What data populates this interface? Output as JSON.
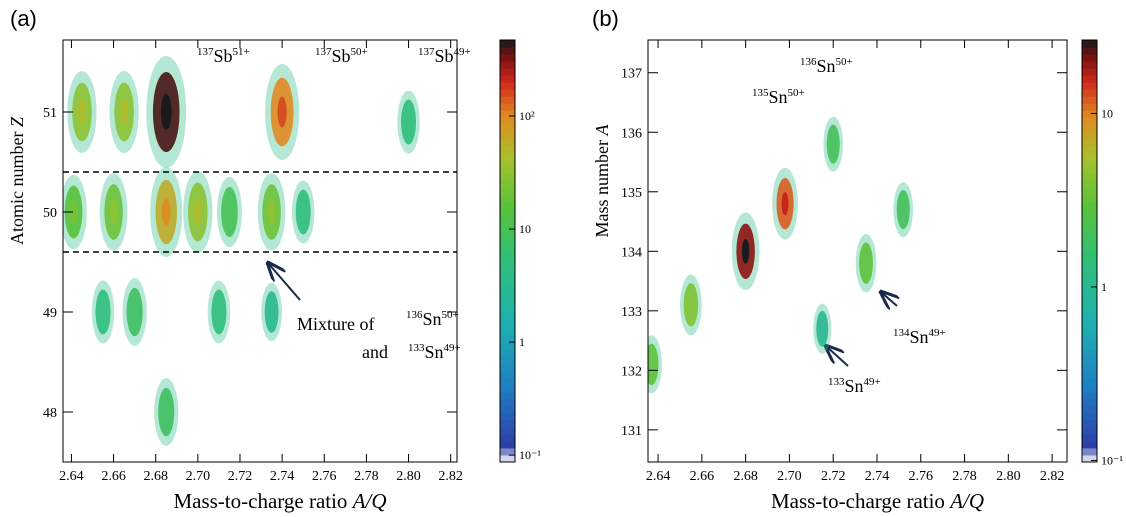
{
  "chart_data": [
    {
      "type": "heatmap",
      "panel": "(a)",
      "xlabel": {
        "text": "Mass-to-charge ratio",
        "symbol": "A/Q"
      },
      "ylabel": {
        "text": "Atomic number",
        "symbol": "Z"
      },
      "xlim": [
        2.636,
        2.823
      ],
      "ylim": [
        47.5,
        51.72
      ],
      "xticks": [
        2.64,
        2.66,
        2.68,
        {
          "value": 2.7,
          "label": "2.70"
        },
        2.72,
        2.74,
        2.76,
        2.78,
        {
          "value": 2.8,
          "label": "2.80"
        },
        2.82
      ],
      "yticks": [
        48,
        49,
        50,
        51
      ],
      "zscale": "log",
      "zlim": [
        0.087,
        470
      ],
      "zticks": [
        {
          "value": 0.1,
          "label": "10⁻¹"
        },
        1,
        10,
        {
          "value": 100,
          "label": "10²"
        }
      ],
      "hlines": [
        50.4,
        49.6
      ],
      "clusters": {
        "x": [
          2.645,
          2.665,
          2.685,
          2.74,
          2.8,
          2.641,
          2.66,
          2.685,
          2.7,
          2.715,
          2.735,
          2.75,
          2.655,
          2.67,
          2.71,
          2.735,
          2.685
        ],
        "y": [
          51,
          51,
          51,
          51,
          50.9,
          50,
          50,
          50,
          50,
          50,
          50,
          50,
          49,
          49,
          49,
          49,
          48
        ],
        "counts": [
          30,
          30,
          400,
          100,
          5,
          15,
          20,
          60,
          30,
          10,
          20,
          5,
          5,
          8,
          5,
          3,
          8
        ]
      },
      "annotations": [
        {
          "mass": "137",
          "element": "Sb",
          "charge": "51+"
        },
        {
          "mass": "137",
          "element": "Sb",
          "charge": "50+"
        },
        {
          "mass": "137",
          "element": "Sb",
          "charge": "49+"
        },
        {
          "text": "Mixture of"
        },
        {
          "mass": "136",
          "element": "Sn",
          "charge": "50+"
        },
        {
          "text": "and"
        },
        {
          "mass": "133",
          "element": "Sn",
          "charge": "49+"
        }
      ]
    },
    {
      "type": "heatmap",
      "panel": "(b)",
      "xlabel": {
        "text": "Mass-to-charge ratio",
        "symbol": "A/Q"
      },
      "ylabel": {
        "text": "Mass number",
        "symbol": "A"
      },
      "xlim": [
        2.6354,
        2.8268
      ],
      "ylim": [
        130.46,
        137.55
      ],
      "xticks": [
        2.64,
        2.66,
        2.68,
        {
          "value": 2.7,
          "label": "2.70"
        },
        2.72,
        2.74,
        2.76,
        2.78,
        {
          "value": 2.8,
          "label": "2.80"
        },
        2.82
      ],
      "yticks": [
        131,
        132,
        133,
        134,
        135,
        136,
        137
      ],
      "zscale": "log",
      "zlim": [
        0.098,
        26.5
      ],
      "zticks": [
        {
          "value": 0.1,
          "label": "10⁻¹"
        },
        1,
        10
      ],
      "clusters": {
        "x": [
          2.637,
          2.655,
          2.68,
          2.698,
          2.72,
          2.735,
          2.752,
          2.715
        ],
        "y": [
          132.1,
          133.1,
          134.0,
          134.8,
          135.8,
          133.8,
          134.7,
          132.7
        ],
        "counts": [
          3,
          4,
          20,
          12,
          2,
          3,
          2,
          1
        ]
      },
      "annotations": [
        {
          "mass": "135",
          "element": "Sn",
          "charge": "50+"
        },
        {
          "mass": "136",
          "element": "Sn",
          "charge": "50+"
        },
        {
          "mass": "134",
          "element": "Sn",
          "charge": "49+"
        },
        {
          "mass": "133",
          "element": "Sn",
          "charge": "49+"
        }
      ]
    }
  ]
}
